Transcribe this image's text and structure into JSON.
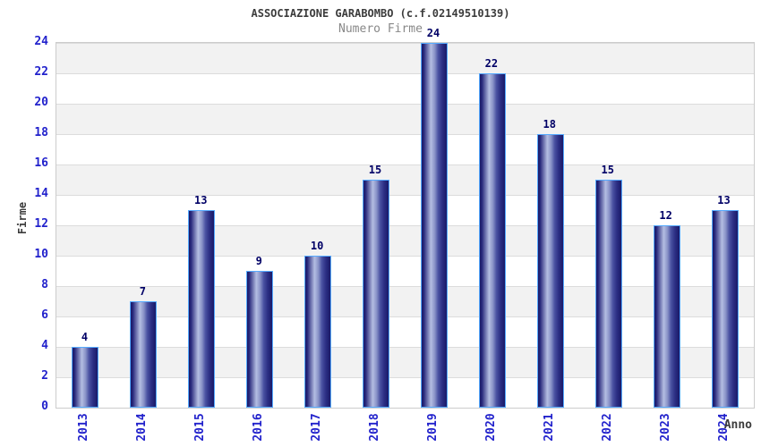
{
  "chart_data": {
    "type": "bar",
    "title": "ASSOCIAZIONE GARABOMBO (c.f.02149510139)",
    "subtitle": "Numero Firme",
    "xlabel": "Anno",
    "ylabel": "Firme",
    "categories": [
      "2013",
      "2014",
      "2015",
      "2016",
      "2017",
      "2018",
      "2019",
      "2020",
      "2021",
      "2022",
      "2023",
      "2024"
    ],
    "values": [
      4,
      7,
      13,
      9,
      10,
      15,
      24,
      22,
      18,
      15,
      12,
      13
    ],
    "ylim": [
      0,
      24
    ],
    "ytick_step": 2,
    "ytick_labels": [
      "0",
      "2",
      "4",
      "6",
      "8",
      "10",
      "12",
      "14",
      "16",
      "18",
      "20",
      "22",
      "24"
    ],
    "grid": "horizontal alternating bands",
    "legend_position": "none",
    "bar_labels_shown": true,
    "colors": {
      "bar_dark": "#1a1a68",
      "bar_mid": "#4a52a2",
      "bar_light": "#b4bee2",
      "bar_border": "#55aaff",
      "tick_label": "#2222cc",
      "value_label": "#000066",
      "band_gray": "#f2f2f2",
      "band_white": "#ffffff",
      "grid_line": "#dcdcdc",
      "plot_border": "#cccccc",
      "title_color": "#3c3c3c",
      "subtitle_color": "#888888",
      "axis_title_color": "#3c3c3c"
    }
  }
}
